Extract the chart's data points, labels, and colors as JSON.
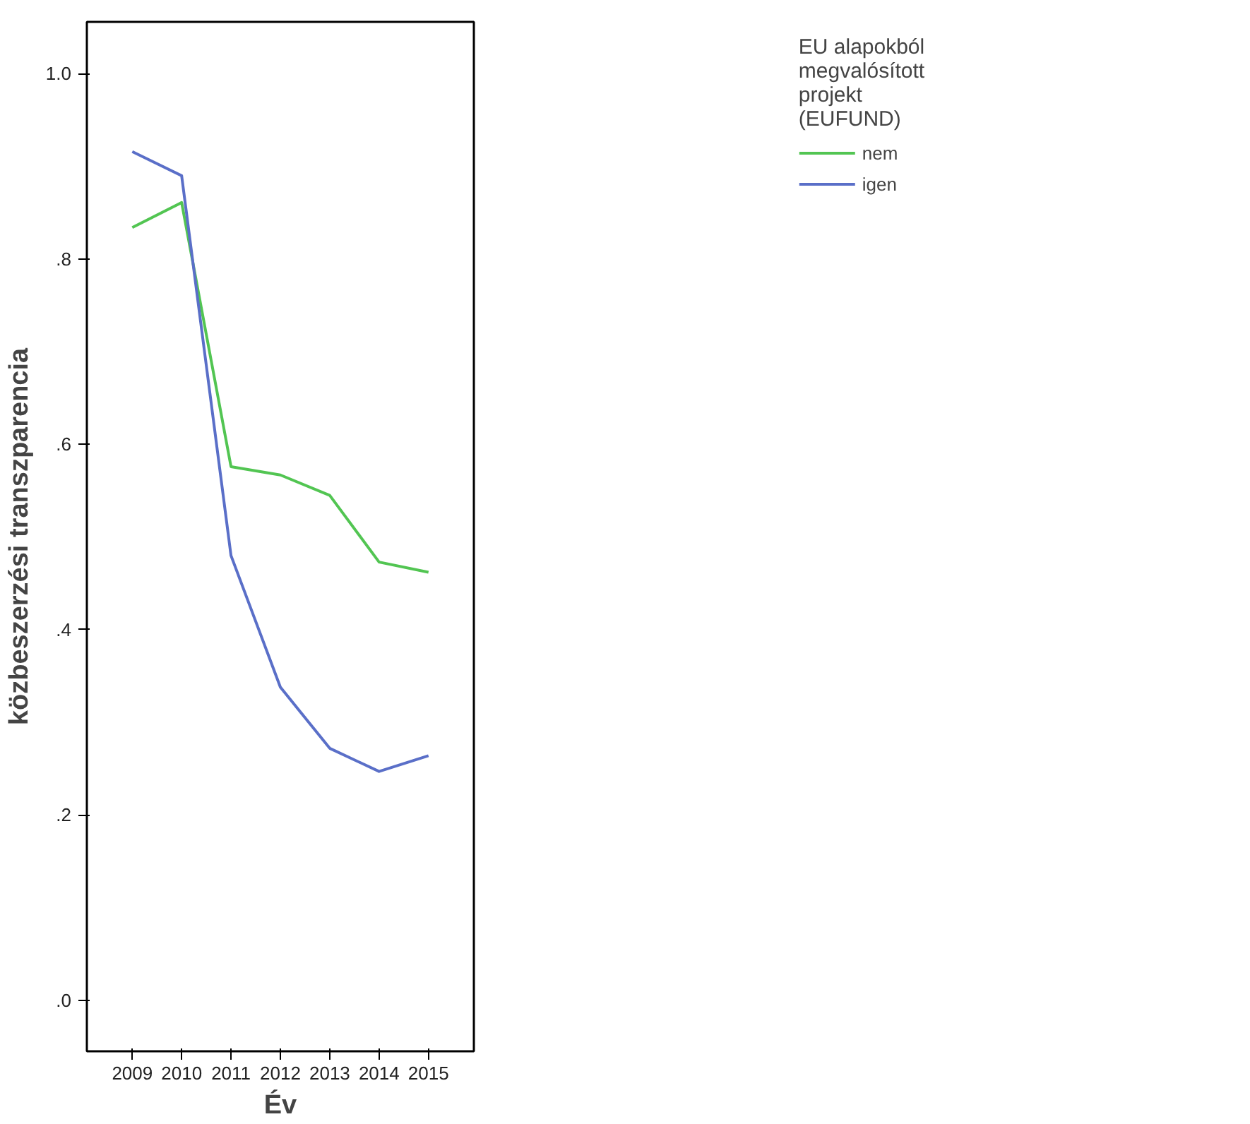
{
  "chart_data": {
    "type": "line",
    "xlabel": "Év",
    "ylabel": "közbeszerzési transzparencia",
    "legend_title": "EU alapokból megvalósított projekt (EUFUND)",
    "legend": "top right",
    "grid": false,
    "marker": "none",
    "line_style": "solid",
    "categories": [
      "2009",
      "2010",
      "2011",
      "2012",
      "2013",
      "2014",
      "2015"
    ],
    "ylim": [
      -0.055,
      1.056
    ],
    "yticks": [
      {
        "value": 0,
        "label": ".0"
      },
      {
        "value": 0.2,
        "label": ".2"
      },
      {
        "value": 0.4,
        "label": ".4"
      },
      {
        "value": 0.6,
        "label": ".6"
      },
      {
        "value": 0.8,
        "label": ".8"
      },
      {
        "value": 1.0,
        "label": "1.0"
      }
    ],
    "series": [
      {
        "name": "nem",
        "color": "#52c552",
        "values": [
          0.834,
          0.861,
          0.576,
          0.567,
          0.545,
          0.473,
          0.462
        ]
      },
      {
        "name": "igen",
        "color": "#5a6fc8",
        "values": [
          0.916,
          0.89,
          0.48,
          0.338,
          0.272,
          0.247,
          0.264
        ]
      }
    ]
  }
}
